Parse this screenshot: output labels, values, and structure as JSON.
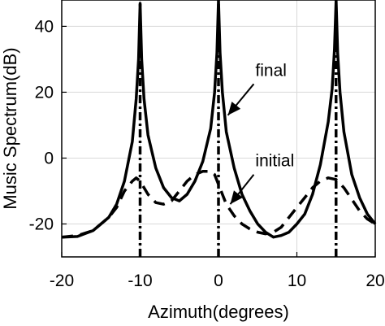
{
  "chart_data": {
    "type": "line",
    "xlabel": "Azimuth(degrees)",
    "ylabel": "Music Spectrum(dB)",
    "xlim": [
      -20,
      20
    ],
    "ylim": [
      -30,
      48
    ],
    "grid": true,
    "xticks": [
      -20,
      -10,
      0,
      10,
      20
    ],
    "yticks": [
      -20,
      0,
      20,
      40
    ],
    "xtick_labels": [
      "-20",
      "-10",
      "0",
      "10",
      "20"
    ],
    "ytick_labels": [
      "-20",
      "0",
      "20",
      "40"
    ],
    "series": [
      {
        "name": "final",
        "style": "solid",
        "color": "#000000",
        "x": [
          -20,
          -18,
          -16,
          -14,
          -13,
          -12,
          -11,
          -10.5,
          -10.2,
          -10,
          -9.8,
          -9.5,
          -9,
          -8,
          -7,
          -6,
          -5,
          -4,
          -3,
          -2,
          -1,
          -0.5,
          -0.2,
          0,
          0.2,
          0.5,
          1,
          2,
          3,
          4,
          5,
          6,
          7,
          8,
          9,
          10,
          11,
          12,
          13,
          14,
          14.5,
          14.8,
          15,
          15.2,
          15.5,
          16,
          17,
          18,
          19,
          20
        ],
        "y": [
          -24,
          -23.8,
          -22,
          -18,
          -14,
          -7,
          5,
          18,
          30,
          47,
          30,
          18,
          7,
          -3,
          -9,
          -12,
          -13,
          -11,
          -7,
          -1,
          9,
          20,
          32,
          48,
          32,
          20,
          8,
          -3,
          -11,
          -16,
          -20,
          -22.5,
          -24,
          -23.5,
          -22.5,
          -20,
          -17,
          -11,
          -2,
          11,
          21,
          33,
          48,
          32,
          20,
          8,
          -5,
          -12,
          -17,
          -20
        ]
      },
      {
        "name": "initial",
        "style": "dashed",
        "color": "#000000",
        "x": [
          -20,
          -18,
          -16,
          -14,
          -13,
          -12,
          -11,
          -10.5,
          -10,
          -9.5,
          -9,
          -8,
          -7,
          -6,
          -5,
          -4,
          -3,
          -2,
          -1,
          -0.5,
          0,
          0.5,
          1,
          2,
          3,
          4,
          5,
          6,
          7,
          8,
          9,
          10,
          11,
          12,
          13,
          14,
          15,
          16,
          17,
          18,
          19,
          20
        ],
        "y": [
          -24,
          -23.5,
          -22,
          -18,
          -15,
          -10,
          -7,
          -6,
          -7,
          -9,
          -11,
          -13.5,
          -14,
          -13,
          -10,
          -7,
          -5,
          -4,
          -4,
          -5,
          -8,
          -11,
          -14,
          -17.5,
          -20,
          -21.5,
          -22.5,
          -23,
          -22.5,
          -21,
          -18,
          -15,
          -12,
          -9,
          -7,
          -6,
          -6.5,
          -9,
          -12.5,
          -16,
          -18.5,
          -20
        ]
      },
      {
        "name": "",
        "style": "dashdot",
        "color": "#000000",
        "segments": [
          {
            "x": -10,
            "y0": -30,
            "y1": 47
          },
          {
            "x": 0,
            "y0": -30,
            "y1": 48
          },
          {
            "x": 15,
            "y0": -30,
            "y1": 48
          }
        ]
      }
    ],
    "annotations": [
      {
        "text": "final",
        "arrow_from": [
          4.5,
          22.5
        ],
        "arrow_to": [
          1.2,
          13
        ]
      },
      {
        "text": "initial",
        "arrow_from": [
          4.5,
          -5
        ],
        "arrow_to": [
          1.5,
          -14
        ]
      }
    ]
  }
}
